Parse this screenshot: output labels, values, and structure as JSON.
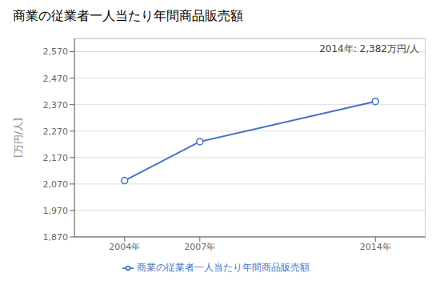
{
  "chart_data": {
    "type": "line",
    "title": "商業の従業者一人当たり年間商品販売額",
    "ylabel": "[万円/人]",
    "annotation": "2014年: 2,382万円/人",
    "x": [
      2004,
      2007,
      2014
    ],
    "series": [
      {
        "name": "商業の従業者一人当たり年間商品販売額",
        "color": "#4472C4",
        "marker": "circle",
        "values": [
          2083,
          2230,
          2382
        ]
      }
    ],
    "xlim": [
      2002,
      2016
    ],
    "xticks": [
      {
        "value": 2004,
        "label": "2004年"
      },
      {
        "value": 2007,
        "label": "2007年"
      },
      {
        "value": 2014,
        "label": "2014年"
      }
    ],
    "ylim": [
      1870,
      2620
    ],
    "yticks": [
      {
        "value": 1870,
        "label": "1,870"
      },
      {
        "value": 1970,
        "label": "1,970"
      },
      {
        "value": 2070,
        "label": "2,070"
      },
      {
        "value": 2170,
        "label": "2,170"
      },
      {
        "value": 2270,
        "label": "2,270"
      },
      {
        "value": 2370,
        "label": "2,370"
      },
      {
        "value": 2470,
        "label": "2,470"
      },
      {
        "value": 2570,
        "label": "2,570"
      }
    ],
    "grid": "y",
    "legend": "bottom"
  }
}
